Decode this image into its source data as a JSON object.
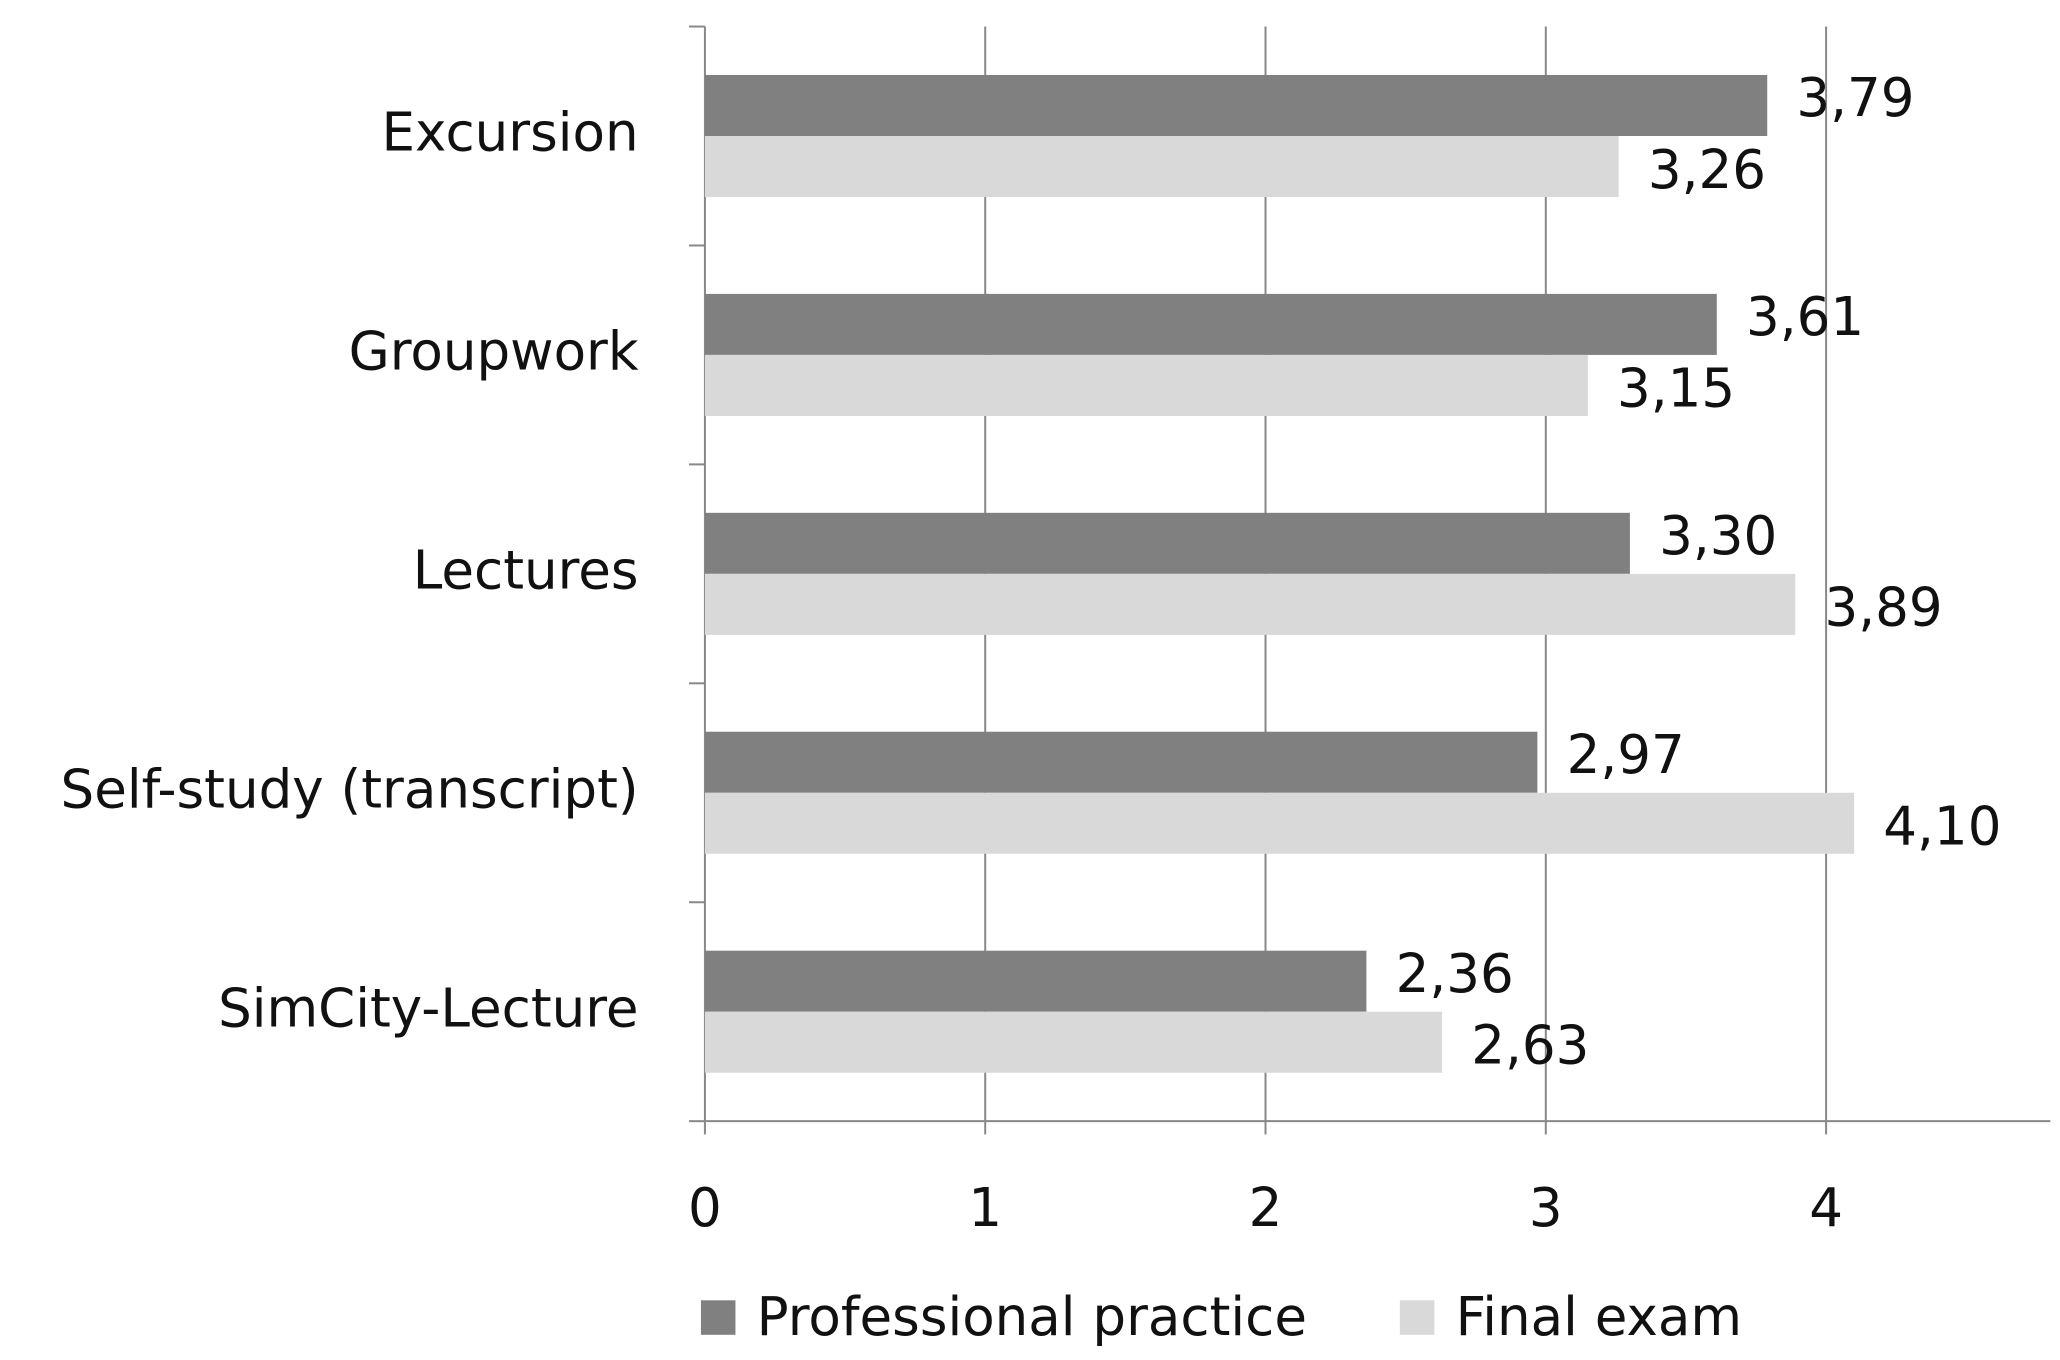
{
  "chart_data": {
    "type": "bar",
    "orientation": "horizontal",
    "categories": [
      "Excursion",
      "Groupwork",
      "Lectures",
      "Self-study (transcript)",
      "SimCity-Lecture"
    ],
    "series": [
      {
        "name": "Professional practice",
        "color": "#808080",
        "values": [
          3.79,
          3.61,
          3.3,
          2.97,
          2.36
        ],
        "value_labels": [
          "3,79",
          "3,61",
          "3,30",
          "2,97",
          "2,36"
        ]
      },
      {
        "name": "Final exam",
        "color": "#d9d9d9",
        "values": [
          3.26,
          3.15,
          3.89,
          4.1,
          2.63
        ],
        "value_labels": [
          "3,26",
          "3,15",
          "3,89",
          "4,10",
          "2,63"
        ]
      }
    ],
    "xlim": [
      0,
      4.8
    ],
    "xticks": [
      0,
      1,
      2,
      3,
      4
    ],
    "grid": true,
    "legend": "bottom"
  }
}
